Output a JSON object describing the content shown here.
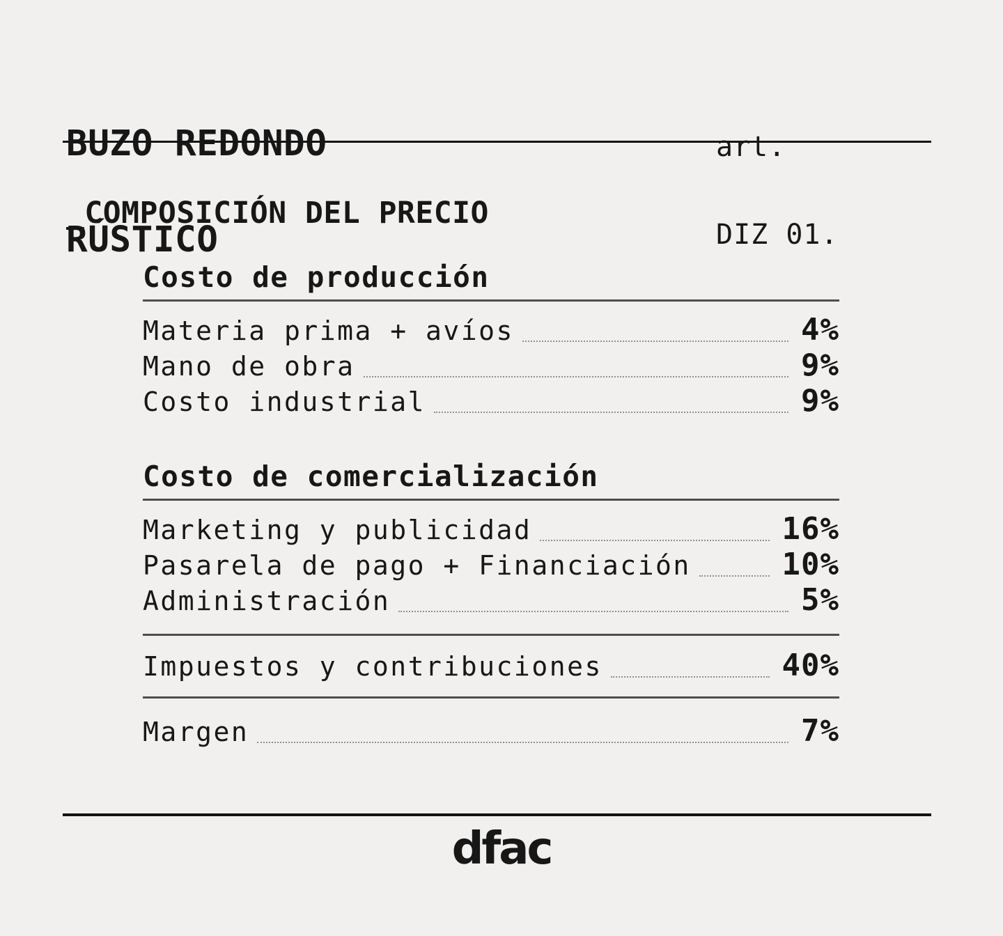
{
  "page": {
    "background": "#f1f0ef",
    "text_color": "#171717",
    "rule_color": "#141414",
    "divider_color": "#4d4d4d",
    "leader_dot_color": "#8f8f8f"
  },
  "header": {
    "title_line1": "BUZO REDONDO",
    "title_line2": "RÚSTICO",
    "art_label": "art.",
    "art_code": "DIZ 01."
  },
  "section_label": "_COMPOSICIÓN DEL PRECIO",
  "groups": [
    {
      "heading": "Costo de producción",
      "rows": [
        {
          "label": "Materia prima + avíos",
          "value": "4%"
        },
        {
          "label": "Mano de obra",
          "value": "9%"
        },
        {
          "label": "Costo industrial",
          "value": "9%"
        }
      ]
    },
    {
      "heading": "Costo de comercialización",
      "rows": [
        {
          "label": "Marketing y publicidad",
          "value": "16%"
        },
        {
          "label": "Pasarela de pago + Financiación",
          "value": "10%"
        },
        {
          "label": "Administración",
          "value": "5%"
        }
      ]
    }
  ],
  "totals": [
    {
      "label": "Impuestos y contribuciones",
      "value": "40%"
    },
    {
      "label": "Margen",
      "value": "7%"
    }
  ],
  "footer": {
    "logo_text": "dfac"
  }
}
